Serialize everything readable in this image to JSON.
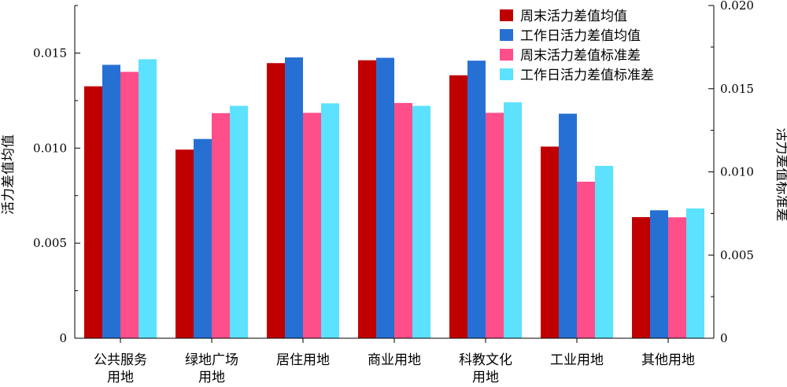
{
  "chart_data": {
    "type": "bar",
    "categories": [
      [
        "公共服务",
        "用地"
      ],
      [
        "绿地广场",
        "用地"
      ],
      [
        "居住用地"
      ],
      [
        "商业用地"
      ],
      [
        "科教文化",
        "用地"
      ],
      [
        "工业用地"
      ],
      [
        "其他用地"
      ]
    ],
    "series": [
      {
        "name": "周末活力差值均值",
        "axis": "left",
        "color": "#C00000",
        "values": [
          0.01325,
          0.00992,
          0.01447,
          0.01462,
          0.01383,
          0.01008,
          0.00637
        ]
      },
      {
        "name": "工作日活力差值均值",
        "axis": "left",
        "color": "#2670D4",
        "values": [
          0.01438,
          0.01048,
          0.01477,
          0.01475,
          0.0146,
          0.01181,
          0.00673
        ]
      },
      {
        "name": "周末活力差值标准差",
        "axis": "right",
        "color": "#FF4F8B",
        "values": [
          0.01601,
          0.01353,
          0.01355,
          0.01414,
          0.01355,
          0.00941,
          0.00727
        ]
      },
      {
        "name": "工作日活力差值标准差",
        "axis": "right",
        "color": "#5CE1FF",
        "values": [
          0.01677,
          0.01397,
          0.01412,
          0.01397,
          0.01418,
          0.01036,
          0.0078
        ]
      }
    ],
    "ylabel": "活力差值均值",
    "y2label": "活力差值标准差",
    "ylim": [
      0,
      0.0175
    ],
    "y2lim": [
      0,
      0.02
    ],
    "yticks": [
      "0",
      "0.005",
      "0.010",
      "0.015"
    ],
    "y2ticks": [
      "0",
      "0.005",
      "0.010",
      "0.015",
      "0.020"
    ],
    "legend_position": "top-right",
    "grid": false
  }
}
